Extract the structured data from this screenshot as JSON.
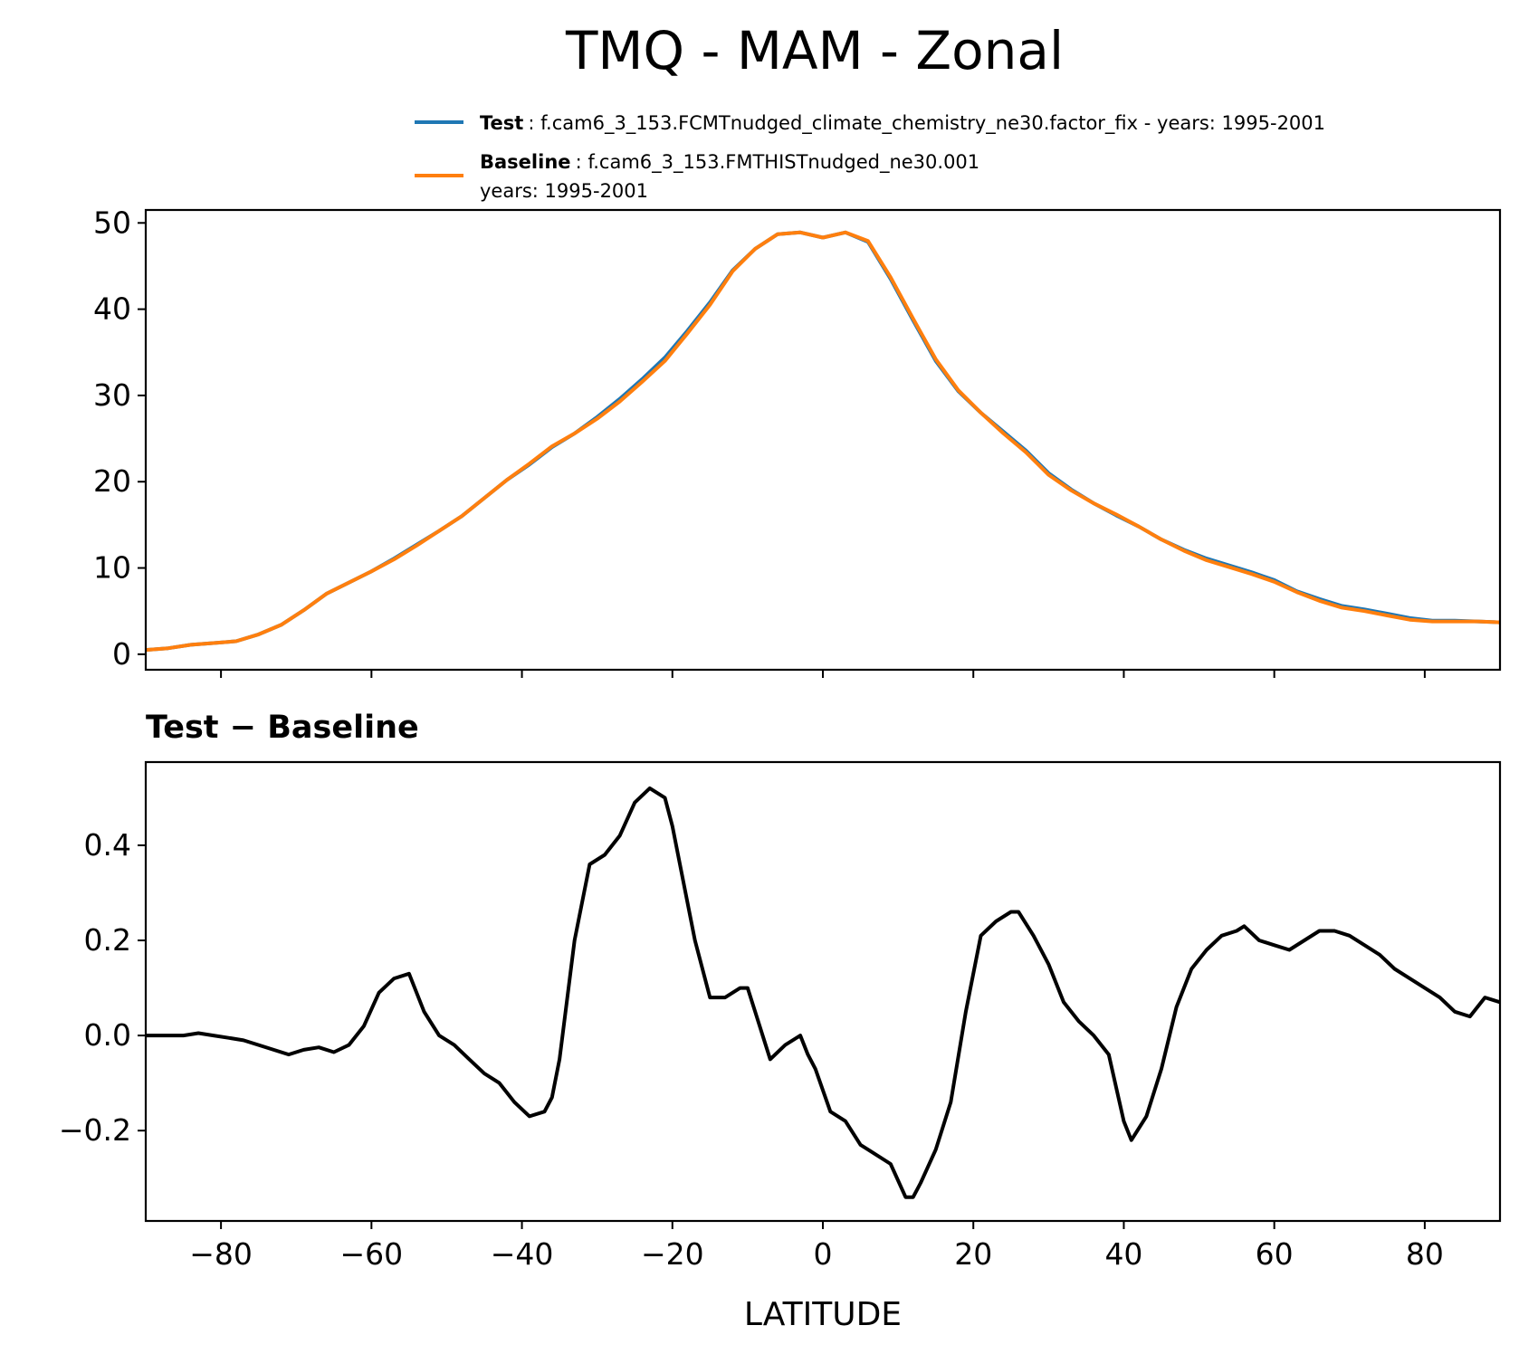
{
  "chart_data": [
    {
      "type": "line",
      "title": "TMQ - MAM - Zonal",
      "xlim": [
        -90,
        90
      ],
      "ylim": [
        -1.8,
        51.5
      ],
      "yticks": [
        0,
        10,
        20,
        30,
        40,
        50
      ],
      "ytick_labels": [
        "0",
        "10",
        "20",
        "30",
        "40",
        "50"
      ],
      "xticks": [
        -80,
        -60,
        -40,
        -20,
        0,
        20,
        40,
        60,
        80
      ],
      "grid": false,
      "legend": {
        "placement": "top-right, above plot",
        "entries": [
          {
            "key": "test",
            "name": "Test",
            "text": ": f.cam6_3_153.FCMTnudged_climate_chemistry_ne30.factor_fix - years: 1995-2001",
            "text2": ""
          },
          {
            "key": "baseline",
            "name": "Baseline",
            "text": ": f.cam6_3_153.FMTHISTnudged_ne30.001",
            "text2": "years: 1995-2001"
          }
        ]
      },
      "series": [
        {
          "key": "test",
          "name": "Test",
          "color": "#1f77b4",
          "x": [
            -90,
            -87,
            -84,
            -81,
            -78,
            -75,
            -72,
            -69,
            -66,
            -63,
            -60,
            -57,
            -54,
            -51,
            -48,
            -45,
            -42,
            -39,
            -36,
            -33,
            -30,
            -27,
            -24,
            -21,
            -18,
            -15,
            -12,
            -9,
            -6,
            -3,
            0,
            3,
            6,
            9,
            12,
            15,
            18,
            21,
            24,
            27,
            30,
            33,
            36,
            39,
            42,
            45,
            48,
            51,
            54,
            57,
            60,
            63,
            66,
            69,
            72,
            75,
            78,
            81,
            84,
            87,
            90
          ],
          "y": [
            0.5,
            0.7,
            1.1,
            1.3,
            1.5,
            2.3,
            3.4,
            5.1,
            7.0,
            8.3,
            9.6,
            11.1,
            12.7,
            14.3,
            16.0,
            18.1,
            20.2,
            22.0,
            24.0,
            25.6,
            27.5,
            29.6,
            31.9,
            34.4,
            37.5,
            40.8,
            44.5,
            47.0,
            48.7,
            48.9,
            48.3,
            48.9,
            47.8,
            43.5,
            38.7,
            34.0,
            30.5,
            28.0,
            25.8,
            23.6,
            21.0,
            19.1,
            17.5,
            16.1,
            14.8,
            13.3,
            12.1,
            11.1,
            10.3,
            9.5,
            8.6,
            7.3,
            6.4,
            5.6,
            5.2,
            4.7,
            4.2,
            3.9,
            3.9,
            3.8,
            3.7
          ]
        },
        {
          "key": "baseline",
          "name": "Baseline",
          "color": "#ff7f0e",
          "x": [
            -90,
            -87,
            -84,
            -81,
            -78,
            -75,
            -72,
            -69,
            -66,
            -63,
            -60,
            -57,
            -54,
            -51,
            -48,
            -45,
            -42,
            -39,
            -36,
            -33,
            -30,
            -27,
            -24,
            -21,
            -18,
            -15,
            -12,
            -9,
            -6,
            -3,
            0,
            3,
            6,
            9,
            12,
            15,
            18,
            21,
            24,
            27,
            30,
            33,
            36,
            39,
            42,
            45,
            48,
            51,
            54,
            57,
            60,
            63,
            66,
            69,
            72,
            75,
            78,
            81,
            84,
            87,
            90
          ],
          "y": [
            0.5,
            0.7,
            1.1,
            1.3,
            1.5,
            2.3,
            3.4,
            5.1,
            7.0,
            8.3,
            9.6,
            11.0,
            12.6,
            14.3,
            16.0,
            18.1,
            20.2,
            22.1,
            24.1,
            25.6,
            27.3,
            29.3,
            31.6,
            34.0,
            37.2,
            40.5,
            44.4,
            47.0,
            48.7,
            48.9,
            48.3,
            48.9,
            47.9,
            43.7,
            38.9,
            34.2,
            30.6,
            28.0,
            25.6,
            23.4,
            20.8,
            19.0,
            17.5,
            16.2,
            14.8,
            13.3,
            12.0,
            10.9,
            10.1,
            9.3,
            8.4,
            7.2,
            6.2,
            5.4,
            5.0,
            4.5,
            4.0,
            3.8,
            3.8,
            3.8,
            3.7
          ]
        }
      ]
    },
    {
      "type": "line",
      "title": "Test − Baseline",
      "xlabel": "LATITUDE",
      "xlim": [
        -90,
        90
      ],
      "ylim": [
        -0.39,
        0.575
      ],
      "yticks": [
        -0.2,
        0.0,
        0.2,
        0.4
      ],
      "ytick_labels": [
        "−0.2",
        "0.0",
        "0.2",
        "0.4"
      ],
      "xticks": [
        -80,
        -60,
        -40,
        -20,
        0,
        20,
        40,
        60,
        80
      ],
      "xtick_labels": [
        "−80",
        "−60",
        "−40",
        "−20",
        "0",
        "20",
        "40",
        "60",
        "80"
      ],
      "grid": false,
      "series": [
        {
          "key": "diff",
          "color": "#000000",
          "x": [
            -90,
            -87,
            -85,
            -83,
            -81,
            -79,
            -77,
            -75,
            -73,
            -71,
            -69,
            -67,
            -65,
            -63,
            -61,
            -59,
            -57,
            -55,
            -53,
            -51,
            -49,
            -47,
            -45,
            -43,
            -41,
            -39,
            -37,
            -36,
            -35,
            -33,
            -31,
            -29,
            -27,
            -25,
            -23,
            -21,
            -20,
            -19,
            -17,
            -15,
            -13,
            -11,
            -10,
            -9,
            -8,
            -7,
            -5,
            -3,
            -2,
            -1,
            1,
            2,
            3,
            5,
            7,
            9,
            11,
            12,
            13,
            15,
            17,
            19,
            21,
            23,
            25,
            26,
            28,
            30,
            32,
            34,
            36,
            38,
            40,
            41,
            43,
            45,
            47,
            49,
            51,
            53,
            55,
            56,
            58,
            60,
            62,
            64,
            66,
            68,
            70,
            72,
            74,
            76,
            78,
            80,
            82,
            84,
            86,
            88,
            90
          ],
          "y": [
            0.0,
            0.0,
            0.0,
            0.005,
            0.0,
            -0.005,
            -0.01,
            -0.02,
            -0.03,
            -0.04,
            -0.03,
            -0.025,
            -0.035,
            -0.02,
            0.02,
            0.09,
            0.12,
            0.13,
            0.05,
            0.0,
            -0.02,
            -0.05,
            -0.08,
            -0.1,
            -0.14,
            -0.17,
            -0.16,
            -0.13,
            -0.05,
            0.2,
            0.36,
            0.38,
            0.42,
            0.49,
            0.52,
            0.5,
            0.44,
            0.36,
            0.2,
            0.08,
            0.08,
            0.1,
            0.1,
            0.05,
            0.0,
            -0.05,
            -0.02,
            0.0,
            -0.04,
            -0.07,
            -0.16,
            -0.17,
            -0.18,
            -0.23,
            -0.25,
            -0.27,
            -0.34,
            -0.34,
            -0.31,
            -0.24,
            -0.14,
            0.05,
            0.21,
            0.24,
            0.26,
            0.26,
            0.21,
            0.15,
            0.07,
            0.03,
            0.0,
            -0.04,
            -0.18,
            -0.22,
            -0.17,
            -0.07,
            0.06,
            0.14,
            0.18,
            0.21,
            0.22,
            0.23,
            0.2,
            0.19,
            0.18,
            0.2,
            0.22,
            0.22,
            0.21,
            0.19,
            0.17,
            0.14,
            0.12,
            0.1,
            0.08,
            0.05,
            0.04,
            0.08,
            0.07
          ]
        }
      ]
    }
  ]
}
